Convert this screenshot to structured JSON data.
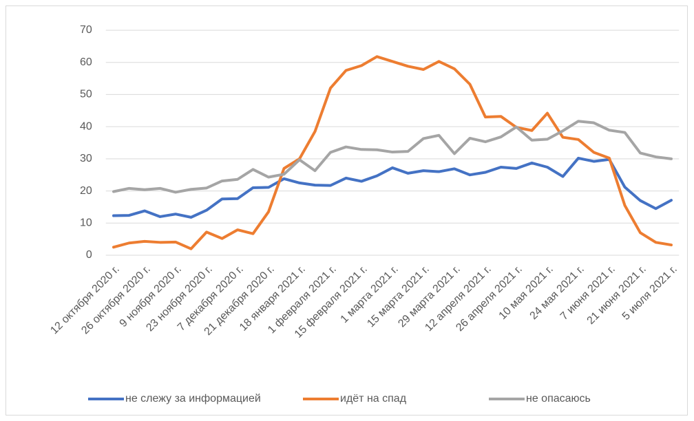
{
  "chart_data": {
    "type": "line",
    "categories": [
      "12 октября 2020 г.",
      null,
      "26 октября 2020 г.",
      null,
      "9 ноября 2020 г.",
      null,
      "23 ноября 2020 г.",
      null,
      "7 декабря 2020 г.",
      null,
      "21 декабря 2020 г.",
      null,
      "18 января 2021 г.",
      null,
      "1 февраля 2021 г.",
      null,
      "15 февраля 2021 г.",
      null,
      "1 марта 2021 г.",
      null,
      "15 марта 2021 г.",
      null,
      "29 марта 2021 г.",
      null,
      "12 апреля 2021 г.",
      null,
      "26 апреля 2021 г.",
      null,
      "10 мая 2021 г.",
      null,
      "24 мая 2021 г.",
      null,
      "7 июня 2021 г.",
      null,
      "21 июня 2021 г.",
      null,
      "5 июля 2021 г."
    ],
    "series": [
      {
        "name": "не слежу за информацией",
        "color": "#4472c4",
        "values": [
          12.3,
          12.4,
          13.8,
          12,
          12.8,
          11.8,
          14,
          17.5,
          17.6,
          21,
          21.1,
          23.8,
          22.5,
          21.8,
          21.7,
          24,
          23,
          24.7,
          27.2,
          25.5,
          26.3,
          26,
          26.9,
          25,
          25.8,
          27.4,
          27,
          28.7,
          27.4,
          24.5,
          30.2,
          29.2,
          29.8,
          21.2,
          17,
          14.5,
          17.1
        ]
      },
      {
        "name": "идёт на спад",
        "color": "#ed7d31",
        "values": [
          2.5,
          3.8,
          4.3,
          4.0,
          4.1,
          2.0,
          7.2,
          5.2,
          7.9,
          6.7,
          13.5,
          27,
          30,
          38.5,
          52,
          57.5,
          59,
          61.8,
          60.3,
          58.8,
          57.8,
          60.3,
          58,
          53.2,
          43,
          43.2,
          39.8,
          38.8,
          44.2,
          36.7,
          36,
          32,
          30.2,
          15.5,
          7,
          4,
          3.2
        ]
      },
      {
        "name": "не опасаюсь",
        "color": "#a5a5a5",
        "values": [
          19.8,
          20.8,
          20.4,
          20.8,
          19.6,
          20.5,
          20.9,
          23.1,
          23.6,
          26.7,
          24.3,
          25.2,
          29.7,
          26.3,
          32,
          33.7,
          32.9,
          32.8,
          32.1,
          32.3,
          36.3,
          37.3,
          31.6,
          36.4,
          35.3,
          36.8,
          39.9,
          35.8,
          36.1,
          38.7,
          41.7,
          41.2,
          38.9,
          38.2,
          31.8,
          30.6,
          30.0
        ]
      }
    ],
    "ylim": [
      0,
      70
    ],
    "yticks": [
      0,
      10,
      20,
      30,
      40,
      50,
      60,
      70
    ],
    "grid": true,
    "legend": "bottom"
  }
}
